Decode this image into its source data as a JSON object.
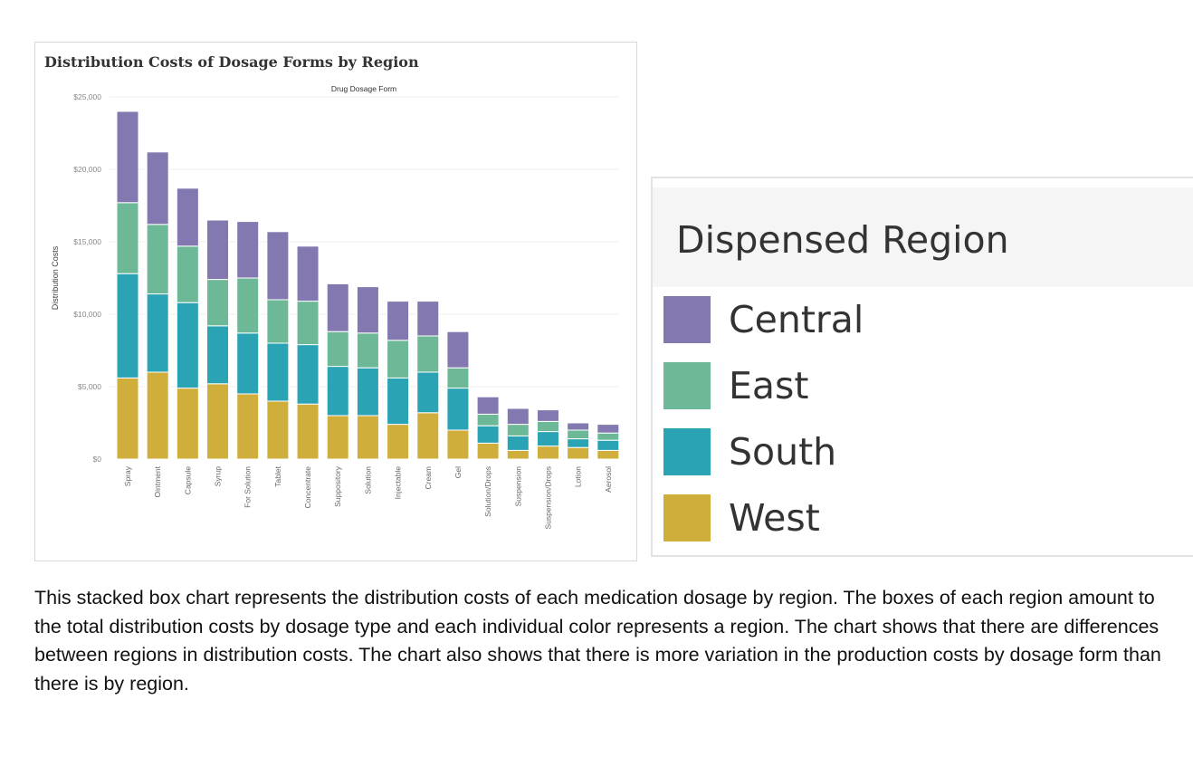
{
  "chart_data": {
    "type": "bar",
    "stacked": true,
    "title": "Distribution Costs of Dosage Forms by Region",
    "xlabel": "Drug Dosage Form",
    "ylabel": "Distribution Costs",
    "ylim": [
      0,
      25000
    ],
    "yticks": [
      "$0",
      "$5,000",
      "$10,000",
      "$15,000",
      "$20,000",
      "$25,000"
    ],
    "grid": true,
    "categories": [
      "Spray",
      "Ointment",
      "Capsule",
      "Syrup",
      "For Solution",
      "Tablet",
      "Concentrate",
      "Suppository",
      "Solution",
      "Injectable",
      "Cream",
      "Gel",
      "Solution/Drops",
      "Suspension",
      "Suspension/Drops",
      "Lotion",
      "Aerosol"
    ],
    "series": [
      {
        "name": "West",
        "color": "#cfae3c",
        "values": [
          5600,
          6000,
          4900,
          5200,
          4500,
          4000,
          3800,
          3000,
          3000,
          2400,
          3200,
          2000,
          1100,
          600,
          900,
          800,
          600
        ]
      },
      {
        "name": "South",
        "color": "#2aa3b5",
        "values": [
          7200,
          5400,
          5900,
          4000,
          4200,
          4000,
          4100,
          3400,
          3300,
          3200,
          2800,
          2900,
          1200,
          1000,
          1000,
          600,
          700
        ]
      },
      {
        "name": "East",
        "color": "#6db896",
        "values": [
          4900,
          4800,
          3900,
          3200,
          3800,
          3000,
          3000,
          2400,
          2400,
          2600,
          2500,
          1400,
          800,
          800,
          700,
          600,
          500
        ]
      },
      {
        "name": "Central",
        "color": "#8379b0",
        "values": [
          6300,
          5000,
          4000,
          4100,
          3900,
          4700,
          3800,
          3300,
          3200,
          2700,
          2400,
          2500,
          1200,
          1100,
          800,
          500,
          600
        ]
      }
    ]
  },
  "legend": {
    "title": "Dispensed Region",
    "items": [
      {
        "label": "Central",
        "color": "#8379b0"
      },
      {
        "label": "East",
        "color": "#6db896"
      },
      {
        "label": "South",
        "color": "#2aa3b5"
      },
      {
        "label": "West",
        "color": "#cfae3c"
      }
    ]
  },
  "caption": "This stacked box chart represents the distribution costs of each medication dosage by region. The boxes of each region amount to the total distribution costs by dosage type and each individual color represents a region. The chart shows that there are differences between regions in distribution costs. The chart also shows that there is more variation in the production costs by dosage form than there is by region."
}
